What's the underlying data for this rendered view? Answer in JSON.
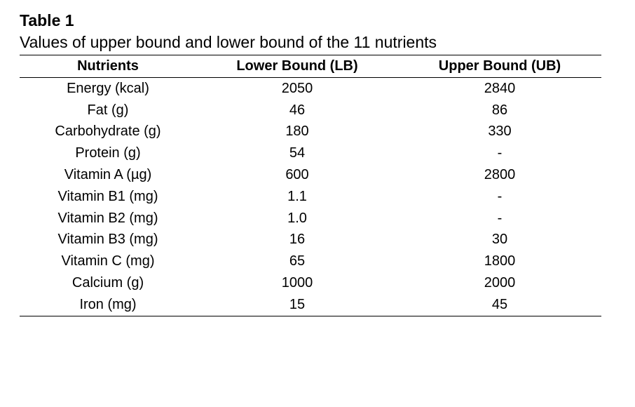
{
  "table": {
    "label": "Table 1",
    "caption": "Values of upper bound and lower bound of the 11 nutrients",
    "headers": [
      "Nutrients",
      "Lower Bound (LB)",
      "Upper Bound (UB)"
    ],
    "rows": [
      [
        "Energy (kcal)",
        "2050",
        "2840"
      ],
      [
        "Fat (g)",
        "46",
        "86"
      ],
      [
        "Carbohydrate (g)",
        "180",
        "330"
      ],
      [
        "Protein (g)",
        "54",
        "-"
      ],
      [
        "Vitamin A (µg)",
        "600",
        "2800"
      ],
      [
        "Vitamin B1 (mg)",
        "1.1",
        "-"
      ],
      [
        "Vitamin B2 (mg)",
        "1.0",
        "-"
      ],
      [
        "Vitamin B3 (mg)",
        "16",
        "30"
      ],
      [
        "Vitamin C (mg)",
        "65",
        "1800"
      ],
      [
        "Calcium (g)",
        "1000",
        "2000"
      ],
      [
        "Iron (mg)",
        "15",
        "45"
      ]
    ]
  }
}
